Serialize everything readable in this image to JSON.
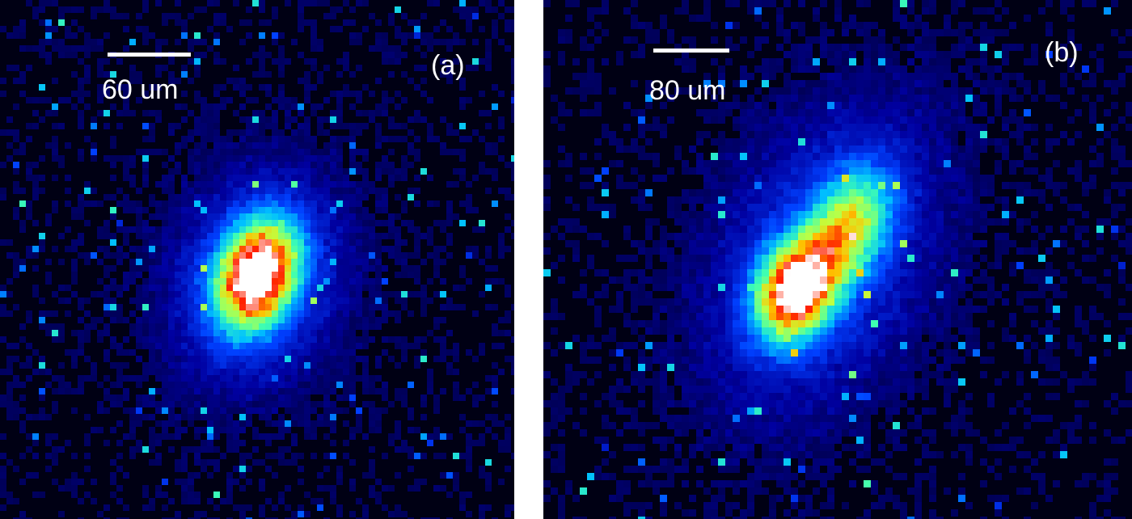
{
  "panels": [
    {
      "label": "(a)",
      "scale_bar_text": "60 um"
    },
    {
      "label": "(b)",
      "scale_bar_text": "80 um"
    }
  ],
  "colormap": [
    "#000014",
    "#0000a0",
    "#0040ff",
    "#00c0ff",
    "#40ffb0",
    "#c0ff40",
    "#ffc000",
    "#ff2000",
    "#ffffff"
  ]
}
